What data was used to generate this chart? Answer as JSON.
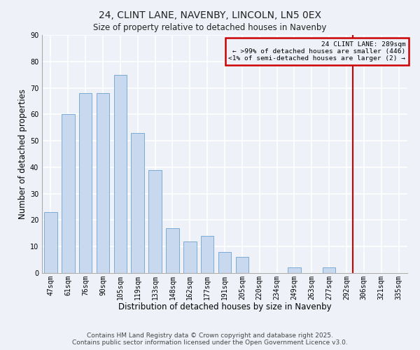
{
  "title": "24, CLINT LANE, NAVENBY, LINCOLN, LN5 0EX",
  "subtitle": "Size of property relative to detached houses in Navenby",
  "xlabel": "Distribution of detached houses by size in Navenby",
  "ylabel": "Number of detached properties",
  "bar_color": "#c8d8ee",
  "bar_edge_color": "#7bacd4",
  "categories": [
    "47sqm",
    "61sqm",
    "76sqm",
    "90sqm",
    "105sqm",
    "119sqm",
    "133sqm",
    "148sqm",
    "162sqm",
    "177sqm",
    "191sqm",
    "205sqm",
    "220sqm",
    "234sqm",
    "249sqm",
    "263sqm",
    "277sqm",
    "292sqm",
    "306sqm",
    "321sqm",
    "335sqm"
  ],
  "values": [
    23,
    60,
    68,
    68,
    75,
    53,
    39,
    17,
    12,
    14,
    8,
    6,
    0,
    0,
    2,
    0,
    2,
    0,
    0,
    0,
    0
  ],
  "ylim": [
    0,
    90
  ],
  "yticks": [
    0,
    10,
    20,
    30,
    40,
    50,
    60,
    70,
    80,
    90
  ],
  "vline_index": 17,
  "vline_color": "#cc0000",
  "box_title": "24 CLINT LANE: 289sqm",
  "box_line1": "← >99% of detached houses are smaller (446)",
  "box_line2": "<1% of semi-detached houses are larger (2) →",
  "box_edge_color": "#cc0000",
  "footnote1": "Contains HM Land Registry data © Crown copyright and database right 2025.",
  "footnote2": "Contains public sector information licensed under the Open Government Licence v3.0.",
  "bg_color": "#eef2f8",
  "grid_color": "#ffffff",
  "title_fontsize": 10,
  "axis_label_fontsize": 8.5,
  "tick_fontsize": 7,
  "footnote_fontsize": 6.5,
  "bar_width": 0.75
}
